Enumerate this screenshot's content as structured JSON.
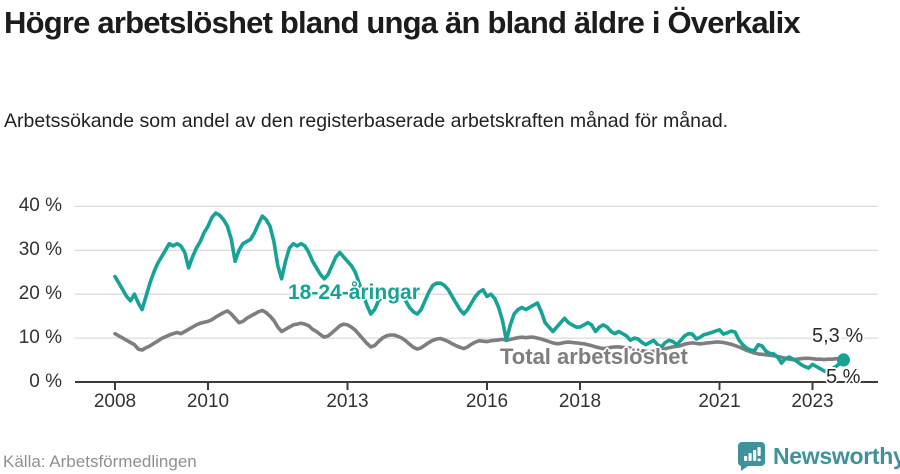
{
  "footer": {
    "brand": "Newsworthy"
  },
  "colors": {
    "accent_teal": "#16a294",
    "series_gray": "#7e7e7e",
    "brand_teal": "#3f919b",
    "grid": "#dcdcdc",
    "axis": "#3c3c3c",
    "title_text": "#1c1c1c",
    "muted_text": "#909090"
  },
  "chart_data": {
    "type": "line",
    "title": "Högre arbetslöshet bland unga än bland äldre i Överkalix",
    "subtitle": "Arbetssökande som andel av den registerbaserade arbetskraften månad för månad.",
    "source": "Källa: Arbetsförmedlingen",
    "x_start_year": 2008,
    "frequency": "monthly",
    "x_ticks": [
      2008,
      2010,
      2013,
      2016,
      2018,
      2021,
      2023
    ],
    "y_ticks": [
      0,
      10,
      20,
      30,
      40
    ],
    "y_tick_suffix": " %",
    "ylim": [
      0,
      42
    ],
    "grid": true,
    "legend_position": "inline-labels",
    "series": [
      {
        "name": "18-24-åringar",
        "color": "#16a294",
        "end_label": "5 %",
        "end_value": 5.0,
        "values": [
          24.0,
          22.5,
          21.0,
          19.5,
          18.5,
          20.0,
          18.0,
          16.5,
          19.5,
          22.5,
          25.0,
          27.0,
          28.5,
          30.0,
          31.5,
          31.0,
          31.5,
          31.0,
          29.5,
          26.0,
          28.5,
          30.5,
          32.0,
          34.0,
          35.5,
          37.5,
          38.5,
          38.0,
          37.0,
          35.5,
          32.5,
          27.5,
          30.0,
          31.5,
          32.0,
          32.5,
          34.0,
          36.0,
          37.8,
          37.0,
          35.5,
          32.0,
          26.5,
          23.5,
          27.5,
          30.5,
          31.5,
          31.0,
          31.5,
          31.0,
          29.5,
          27.5,
          26.0,
          24.5,
          23.5,
          24.5,
          26.5,
          28.5,
          29.5,
          28.5,
          27.5,
          26.5,
          25.0,
          22.5,
          20.0,
          17.5,
          15.5,
          16.5,
          18.5,
          19.5,
          20.5,
          21.0,
          21.0,
          20.5,
          19.5,
          18.5,
          17.0,
          16.0,
          15.5,
          16.5,
          18.5,
          20.5,
          22.0,
          22.5,
          22.5,
          22.0,
          21.0,
          19.5,
          18.0,
          16.5,
          15.5,
          16.5,
          18.0,
          19.5,
          20.5,
          21.0,
          19.5,
          20.0,
          19.0,
          17.0,
          14.0,
          9.5,
          13.0,
          15.5,
          16.5,
          17.0,
          16.5,
          17.0,
          17.5,
          18.0,
          16.0,
          13.5,
          12.5,
          11.5,
          12.5,
          13.5,
          14.5,
          13.5,
          13.0,
          12.5,
          12.5,
          13.0,
          13.5,
          13.0,
          11.5,
          12.5,
          13.0,
          12.5,
          11.5,
          11.0,
          11.5,
          11.0,
          10.5,
          9.5,
          10.0,
          9.8,
          9.0,
          8.5,
          9.0,
          9.5,
          8.5,
          8.0,
          9.0,
          9.5,
          9.2,
          8.5,
          9.5,
          10.5,
          11.0,
          10.9,
          9.8,
          10.2,
          10.8,
          11.0,
          11.3,
          11.6,
          11.9,
          10.9,
          11.2,
          11.6,
          11.4,
          9.6,
          8.5,
          7.7,
          7.3,
          7.1,
          8.5,
          8.2,
          7.0,
          6.5,
          6.4,
          5.7,
          4.3,
          5.3,
          5.7,
          5.2,
          4.7,
          4.0,
          3.5,
          3.2,
          4.0,
          3.5,
          3.0,
          2.5,
          2.2,
          3.0,
          3.5,
          4.2,
          5.0
        ]
      },
      {
        "name": "Total arbetslöshet",
        "color": "#7e7e7e",
        "end_label": "5,3 %",
        "end_value": 5.3,
        "values": [
          11.0,
          10.5,
          10.0,
          9.5,
          9.0,
          8.5,
          7.5,
          7.3,
          7.8,
          8.2,
          8.8,
          9.3,
          9.9,
          10.3,
          10.7,
          11.0,
          11.3,
          11.0,
          11.5,
          12.0,
          12.5,
          13.0,
          13.4,
          13.6,
          13.8,
          14.2,
          14.8,
          15.3,
          15.8,
          16.2,
          15.5,
          14.5,
          13.5,
          13.8,
          14.5,
          15.0,
          15.5,
          16.0,
          16.3,
          15.8,
          15.0,
          14.0,
          12.5,
          11.5,
          12.0,
          12.5,
          13.0,
          13.2,
          13.4,
          13.2,
          12.8,
          12.0,
          11.5,
          10.8,
          10.2,
          10.5,
          11.2,
          12.0,
          12.8,
          13.2,
          13.0,
          12.5,
          11.8,
          10.8,
          9.8,
          8.8,
          8.0,
          8.3,
          9.2,
          10.0,
          10.5,
          10.7,
          10.7,
          10.4,
          10.0,
          9.4,
          8.6,
          7.9,
          7.5,
          7.8,
          8.4,
          9.0,
          9.5,
          9.8,
          9.9,
          9.6,
          9.2,
          8.7,
          8.3,
          7.9,
          7.6,
          8.0,
          8.6,
          9.1,
          9.4,
          9.3,
          9.2,
          9.4,
          9.5,
          9.6,
          9.7,
          9.5,
          9.7,
          9.9,
          10.1,
          10.2,
          10.1,
          10.2,
          10.2,
          10.0,
          9.8,
          9.5,
          9.2,
          8.9,
          8.7,
          8.8,
          9.0,
          9.1,
          9.0,
          8.9,
          8.8,
          8.7,
          8.5,
          8.3,
          8.0,
          7.8,
          7.6,
          7.7,
          7.9,
          8.0,
          8.0,
          7.9,
          7.8,
          7.7,
          7.5,
          7.3,
          7.1,
          7.0,
          6.9,
          7.0,
          7.2,
          7.4,
          7.6,
          7.8,
          8.0,
          8.1,
          8.3,
          8.6,
          8.8,
          8.9,
          8.8,
          8.7,
          8.8,
          8.9,
          9.0,
          9.1,
          9.1,
          9.0,
          8.8,
          8.6,
          8.3,
          8.0,
          7.6,
          7.2,
          6.9,
          6.6,
          6.4,
          6.3,
          6.2,
          6.1,
          6.0,
          5.8,
          5.6,
          5.4,
          5.2,
          5.1,
          5.2,
          5.3,
          5.4,
          5.4,
          5.3,
          5.2,
          5.2,
          5.1,
          5.2,
          5.2,
          5.3,
          5.2,
          5.3
        ]
      }
    ]
  }
}
